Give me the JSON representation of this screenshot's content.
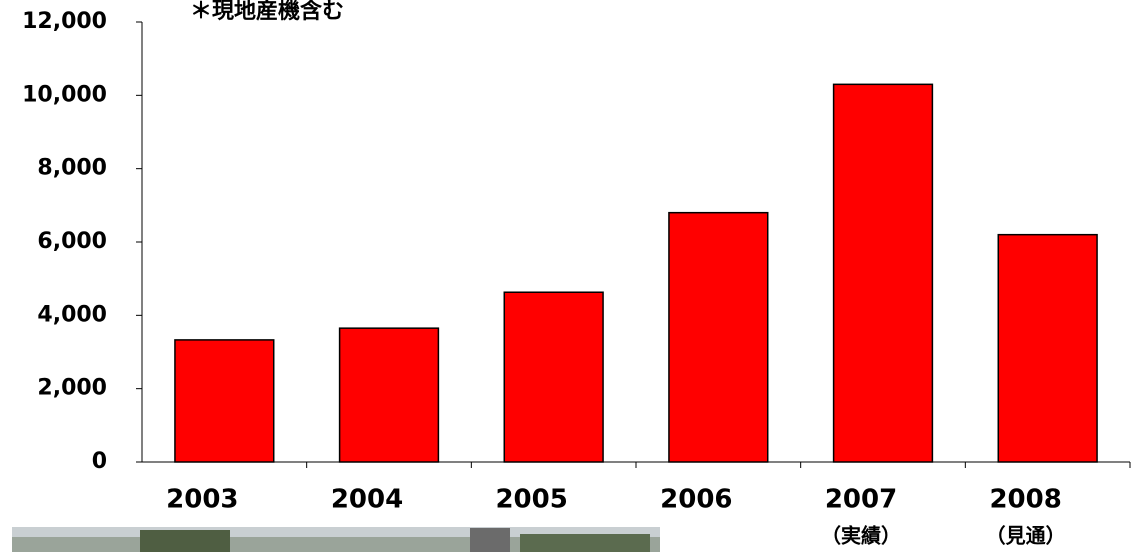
{
  "chart_data": {
    "type": "bar",
    "title": "＊現地産機含む",
    "categories": [
      "2003",
      "2004",
      "2005",
      "2006",
      "2007",
      "2008"
    ],
    "category_notes": [
      null,
      null,
      null,
      null,
      "（実績）",
      "（見通）"
    ],
    "values": [
      3330,
      3650,
      4630,
      6800,
      10300,
      6200
    ],
    "color": "#ff0000",
    "ylim": [
      0,
      12000
    ],
    "yticks": [
      0,
      {
        "value": 2000,
        "label": "2,000"
      },
      {
        "value": 4000,
        "label": "4,000"
      },
      {
        "value": 6000,
        "label": "6,000"
      },
      {
        "value": 8000,
        "label": "8,000"
      },
      {
        "value": 10000,
        "label": "10,000"
      },
      {
        "value": 12000,
        "label": "12,000"
      }
    ],
    "grid": false
  }
}
